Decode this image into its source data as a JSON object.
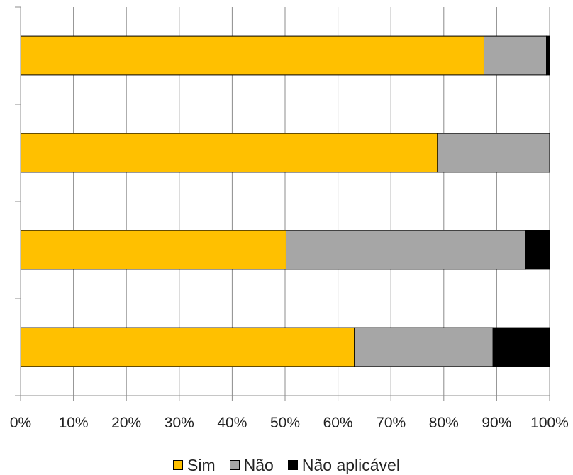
{
  "chart_data": {
    "type": "bar",
    "orientation": "horizontal",
    "stacked": "percent",
    "categories": [
      "",
      "",
      "",
      ""
    ],
    "series": [
      {
        "name": "Sim",
        "color": "#FFC000",
        "values": [
          87.6,
          78.8,
          50.2,
          63.1
        ]
      },
      {
        "name": "Não",
        "color": "#A6A6A6",
        "values": [
          11.8,
          21.2,
          45.3,
          26.2
        ]
      },
      {
        "name": "Não aplicável",
        "color": "#000000",
        "values": [
          0.6,
          0.0,
          4.5,
          10.7
        ]
      }
    ],
    "xlim": [
      0,
      100
    ],
    "xticks": [
      "0%",
      "10%",
      "20%",
      "30%",
      "40%",
      "50%",
      "60%",
      "70%",
      "80%",
      "90%",
      "100%"
    ],
    "grid": "vertical",
    "legend": "bottom",
    "title": "",
    "xlabel": "",
    "ylabel": ""
  }
}
